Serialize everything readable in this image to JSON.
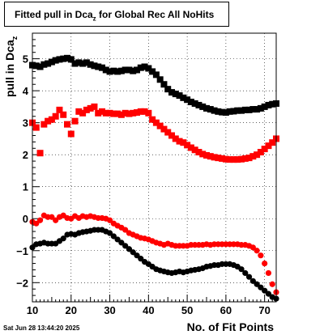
{
  "chart_data": {
    "type": "scatter",
    "title_main": "Fitted pull in Dca",
    "title_sub": "z",
    "title_rest": " for Global Rec All NoHits",
    "xlabel": "No. of Fit Points",
    "ylabel_main": "pull in Dca",
    "ylabel_sub": "z",
    "xlim": [
      10,
      73
    ],
    "ylim": [
      -2.6,
      5.8
    ],
    "xticks": [
      10,
      20,
      30,
      40,
      50,
      60,
      70
    ],
    "yticks": [
      -2,
      -1,
      0,
      1,
      2,
      3,
      4,
      5
    ],
    "grid": true,
    "series": [
      {
        "color": "#000000",
        "marker": "square",
        "points": [
          [
            10,
            4.8
          ],
          [
            11,
            4.78
          ],
          [
            12,
            4.75
          ],
          [
            13,
            4.82
          ],
          [
            14,
            4.85
          ],
          [
            15,
            4.9
          ],
          [
            16,
            4.95
          ],
          [
            17,
            4.98
          ],
          [
            18,
            5.0
          ],
          [
            19,
            5.02
          ],
          [
            20,
            4.98
          ],
          [
            21,
            4.85
          ],
          [
            22,
            4.88
          ],
          [
            23,
            4.85
          ],
          [
            24,
            4.88
          ],
          [
            25,
            4.82
          ],
          [
            26,
            4.78
          ],
          [
            27,
            4.75
          ],
          [
            28,
            4.72
          ],
          [
            29,
            4.65
          ],
          [
            30,
            4.6
          ],
          [
            31,
            4.62
          ],
          [
            32,
            4.6
          ],
          [
            33,
            4.62
          ],
          [
            34,
            4.65
          ],
          [
            35,
            4.65
          ],
          [
            36,
            4.62
          ],
          [
            37,
            4.65
          ],
          [
            38,
            4.72
          ],
          [
            39,
            4.75
          ],
          [
            40,
            4.7
          ],
          [
            41,
            4.6
          ],
          [
            42,
            4.5
          ],
          [
            43,
            4.35
          ],
          [
            44,
            4.2
          ],
          [
            45,
            4.05
          ],
          [
            46,
            3.95
          ],
          [
            47,
            3.9
          ],
          [
            48,
            3.85
          ],
          [
            49,
            3.78
          ],
          [
            50,
            3.72
          ],
          [
            51,
            3.65
          ],
          [
            52,
            3.6
          ],
          [
            53,
            3.55
          ],
          [
            54,
            3.5
          ],
          [
            55,
            3.45
          ],
          [
            56,
            3.42
          ],
          [
            57,
            3.38
          ],
          [
            58,
            3.35
          ],
          [
            59,
            3.33
          ],
          [
            60,
            3.32
          ],
          [
            61,
            3.35
          ],
          [
            62,
            3.36
          ],
          [
            63,
            3.38
          ],
          [
            64,
            3.38
          ],
          [
            65,
            3.4
          ],
          [
            66,
            3.4
          ],
          [
            67,
            3.42
          ],
          [
            68,
            3.42
          ],
          [
            69,
            3.45
          ],
          [
            70,
            3.5
          ],
          [
            71,
            3.55
          ],
          [
            72,
            3.58
          ],
          [
            73,
            3.6
          ]
        ]
      },
      {
        "color": "#ff0000",
        "marker": "square",
        "points": [
          [
            10,
            3.0
          ],
          [
            11,
            2.85
          ],
          [
            12,
            2.05
          ],
          [
            13,
            2.95
          ],
          [
            14,
            3.05
          ],
          [
            15,
            3.1
          ],
          [
            16,
            3.2
          ],
          [
            17,
            3.4
          ],
          [
            18,
            3.25
          ],
          [
            19,
            2.95
          ],
          [
            20,
            2.65
          ],
          [
            21,
            3.05
          ],
          [
            22,
            3.35
          ],
          [
            23,
            3.3
          ],
          [
            24,
            3.4
          ],
          [
            25,
            3.45
          ],
          [
            26,
            3.5
          ],
          [
            27,
            3.3
          ],
          [
            28,
            3.35
          ],
          [
            29,
            3.3
          ],
          [
            30,
            3.3
          ],
          [
            31,
            3.28
          ],
          [
            32,
            3.28
          ],
          [
            33,
            3.25
          ],
          [
            34,
            3.3
          ],
          [
            35,
            3.28
          ],
          [
            36,
            3.3
          ],
          [
            37,
            3.32
          ],
          [
            38,
            3.35
          ],
          [
            39,
            3.35
          ],
          [
            40,
            3.3
          ],
          [
            41,
            3.1
          ],
          [
            42,
            3.0
          ],
          [
            43,
            2.9
          ],
          [
            44,
            2.8
          ],
          [
            45,
            2.7
          ],
          [
            46,
            2.6
          ],
          [
            47,
            2.5
          ],
          [
            48,
            2.42
          ],
          [
            49,
            2.38
          ],
          [
            50,
            2.3
          ],
          [
            51,
            2.22
          ],
          [
            52,
            2.15
          ],
          [
            53,
            2.08
          ],
          [
            54,
            2.02
          ],
          [
            55,
            1.98
          ],
          [
            56,
            1.95
          ],
          [
            57,
            1.92
          ],
          [
            58,
            1.9
          ],
          [
            59,
            1.88
          ],
          [
            60,
            1.86
          ],
          [
            61,
            1.85
          ],
          [
            62,
            1.85
          ],
          [
            63,
            1.85
          ],
          [
            64,
            1.86
          ],
          [
            65,
            1.88
          ],
          [
            66,
            1.9
          ],
          [
            67,
            1.95
          ],
          [
            68,
            2.0
          ],
          [
            69,
            2.08
          ],
          [
            70,
            2.18
          ],
          [
            71,
            2.28
          ],
          [
            72,
            2.38
          ],
          [
            73,
            2.5
          ]
        ]
      },
      {
        "color": "#ff0000",
        "marker": "circle",
        "points": [
          [
            10,
            -0.1
          ],
          [
            11,
            -0.15
          ],
          [
            12,
            -0.05
          ],
          [
            13,
            0.1
          ],
          [
            14,
            0.05
          ],
          [
            15,
            0.05
          ],
          [
            16,
            -0.05
          ],
          [
            17,
            0.05
          ],
          [
            18,
            0.1
          ],
          [
            19,
            0.02
          ],
          [
            20,
            0.0
          ],
          [
            21,
            0.08
          ],
          [
            22,
            0.02
          ],
          [
            23,
            0.08
          ],
          [
            24,
            0.05
          ],
          [
            25,
            0.08
          ],
          [
            26,
            0.05
          ],
          [
            27,
            0.02
          ],
          [
            28,
            0.02
          ],
          [
            29,
            0.0
          ],
          [
            30,
            -0.05
          ],
          [
            31,
            -0.15
          ],
          [
            32,
            -0.22
          ],
          [
            33,
            -0.28
          ],
          [
            34,
            -0.35
          ],
          [
            35,
            -0.45
          ],
          [
            36,
            -0.5
          ],
          [
            37,
            -0.55
          ],
          [
            38,
            -0.6
          ],
          [
            39,
            -0.62
          ],
          [
            40,
            -0.65
          ],
          [
            41,
            -0.7
          ],
          [
            42,
            -0.75
          ],
          [
            43,
            -0.78
          ],
          [
            44,
            -0.82
          ],
          [
            45,
            -0.78
          ],
          [
            46,
            -0.82
          ],
          [
            47,
            -0.85
          ],
          [
            48,
            -0.85
          ],
          [
            49,
            -0.85
          ],
          [
            50,
            -0.85
          ],
          [
            51,
            -0.82
          ],
          [
            52,
            -0.82
          ],
          [
            53,
            -0.82
          ],
          [
            54,
            -0.82
          ],
          [
            55,
            -0.8
          ],
          [
            56,
            -0.82
          ],
          [
            57,
            -0.8
          ],
          [
            58,
            -0.8
          ],
          [
            59,
            -0.8
          ],
          [
            60,
            -0.8
          ],
          [
            61,
            -0.8
          ],
          [
            62,
            -0.8
          ],
          [
            63,
            -0.8
          ],
          [
            64,
            -0.82
          ],
          [
            65,
            -0.82
          ],
          [
            66,
            -0.85
          ],
          [
            67,
            -0.9
          ],
          [
            68,
            -1.0
          ],
          [
            69,
            -1.15
          ],
          [
            70,
            -1.4
          ],
          [
            71,
            -1.7
          ],
          [
            72,
            -2.05
          ],
          [
            73,
            -2.3
          ]
        ]
      },
      {
        "color": "#000000",
        "marker": "circle",
        "points": [
          [
            10,
            -0.9
          ],
          [
            11,
            -0.8
          ],
          [
            12,
            -0.78
          ],
          [
            13,
            -0.75
          ],
          [
            14,
            -0.78
          ],
          [
            15,
            -0.78
          ],
          [
            16,
            -0.78
          ],
          [
            17,
            -0.7
          ],
          [
            18,
            -0.62
          ],
          [
            19,
            -0.5
          ],
          [
            20,
            -0.48
          ],
          [
            21,
            -0.5
          ],
          [
            22,
            -0.45
          ],
          [
            23,
            -0.42
          ],
          [
            24,
            -0.4
          ],
          [
            25,
            -0.38
          ],
          [
            26,
            -0.35
          ],
          [
            27,
            -0.35
          ],
          [
            28,
            -0.35
          ],
          [
            29,
            -0.4
          ],
          [
            30,
            -0.45
          ],
          [
            31,
            -0.55
          ],
          [
            32,
            -0.65
          ],
          [
            33,
            -0.75
          ],
          [
            34,
            -0.85
          ],
          [
            35,
            -0.95
          ],
          [
            36,
            -1.05
          ],
          [
            37,
            -1.15
          ],
          [
            38,
            -1.25
          ],
          [
            39,
            -1.35
          ],
          [
            40,
            -1.42
          ],
          [
            41,
            -1.5
          ],
          [
            42,
            -1.58
          ],
          [
            43,
            -1.62
          ],
          [
            44,
            -1.65
          ],
          [
            45,
            -1.68
          ],
          [
            46,
            -1.7
          ],
          [
            47,
            -1.68
          ],
          [
            48,
            -1.65
          ],
          [
            49,
            -1.68
          ],
          [
            50,
            -1.65
          ],
          [
            51,
            -1.62
          ],
          [
            52,
            -1.6
          ],
          [
            53,
            -1.58
          ],
          [
            54,
            -1.55
          ],
          [
            55,
            -1.5
          ],
          [
            56,
            -1.48
          ],
          [
            57,
            -1.45
          ],
          [
            58,
            -1.45
          ],
          [
            59,
            -1.42
          ],
          [
            60,
            -1.42
          ],
          [
            61,
            -1.42
          ],
          [
            62,
            -1.45
          ],
          [
            63,
            -1.5
          ],
          [
            64,
            -1.58
          ],
          [
            65,
            -1.7
          ],
          [
            66,
            -1.82
          ],
          [
            67,
            -1.95
          ],
          [
            68,
            -2.05
          ],
          [
            69,
            -2.15
          ],
          [
            70,
            -2.25
          ],
          [
            71,
            -2.35
          ],
          [
            72,
            -2.45
          ],
          [
            73,
            -2.5
          ]
        ]
      }
    ]
  },
  "footer_timestamp": "Sat Jun 28 13:44:20 2025"
}
